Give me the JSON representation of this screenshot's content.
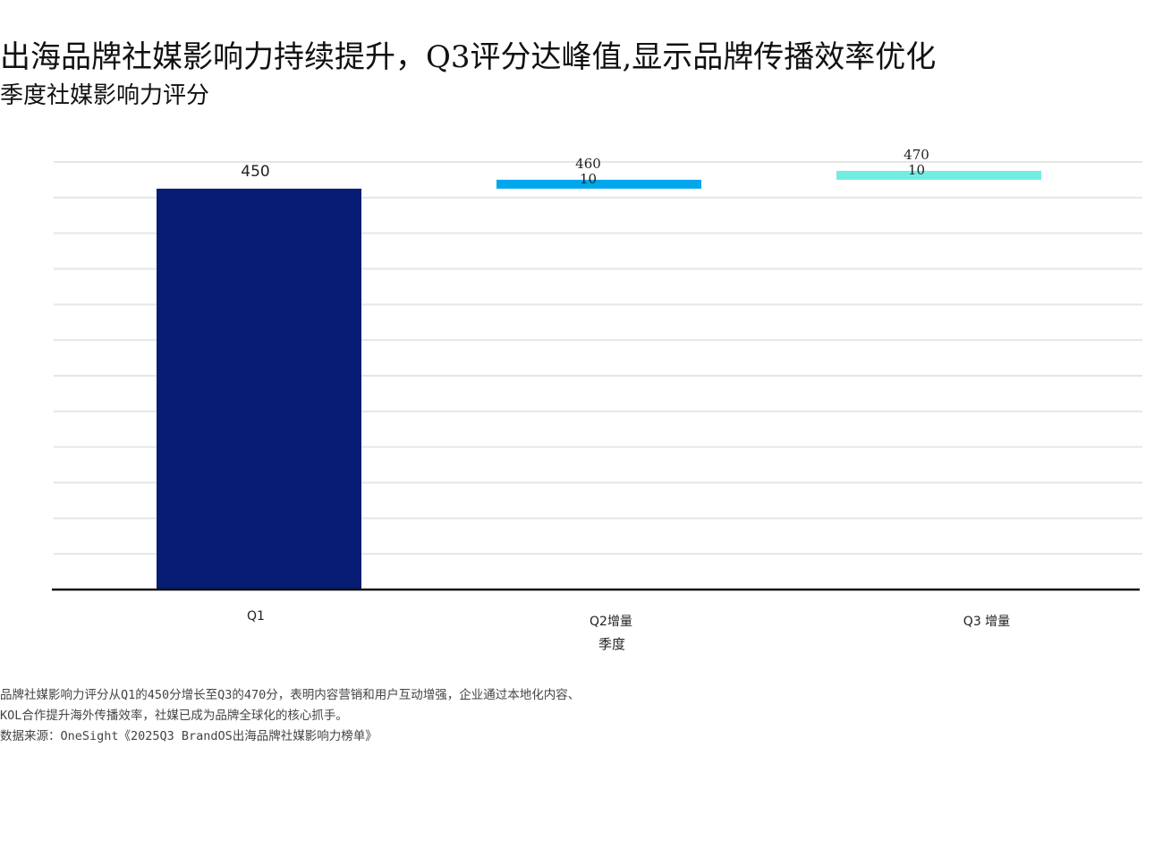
{
  "title": "出海品牌社媒影响力持续提升，Q3评分达峰值,显示品牌传播效率优化",
  "subtitle": "季度社媒影响力评分",
  "chart_data": {
    "type": "waterfall",
    "categories": [
      "Q1",
      "Q2增量",
      "Q3 增量"
    ],
    "values": [
      450,
      10,
      10
    ],
    "cumulative_labels": [
      "450",
      "460",
      "470"
    ],
    "delta_labels": [
      "",
      "10",
      "10"
    ],
    "colors": [
      "#061d73",
      "#00a7ec",
      "#73ede2"
    ],
    "xlabel": "季度",
    "ylabel": "",
    "ylim": [
      0,
      480
    ],
    "grid": true,
    "gridlines": 12
  },
  "notes": [
    "品牌社媒影响力评分从Q1的450分增长至Q3的470分，表明内容营销和用户互动增强，企业通过本地化内容、",
    "KOL合作提升海外传播效率，社媒已成为品牌全球化的核心抓手。",
    "数据来源：OneSight《2025Q3 BrandOS出海品牌社媒影响力榜单》"
  ]
}
